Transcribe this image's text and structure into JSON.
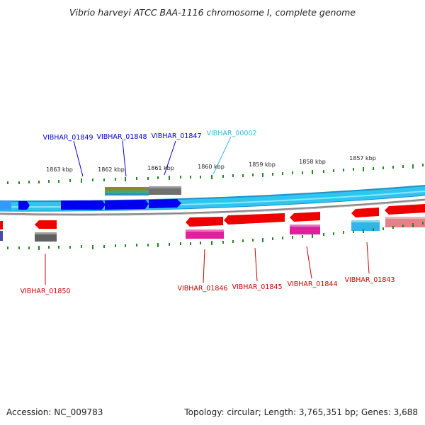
{
  "title": "Vibrio harveyi ATCC BAA-1116 chromosome I, complete genome",
  "footer": {
    "accession": "Accession: NC_009783",
    "summary": "Topology: circular; Length: 3,765,351 bp; Genes: 3,688"
  },
  "scale_labels": [
    "1863 kbp",
    "1862 kbp",
    "1861 kbp",
    "1860 kbp",
    "1859 kbp",
    "1858 kbp",
    "1857 kbp"
  ],
  "gene_labels_top": [
    {
      "text": "VIBHAR_01849",
      "color": "#0000cc"
    },
    {
      "text": "VIBHAR_01848",
      "color": "#0000cc"
    },
    {
      "text": "VIBHAR_01847",
      "color": "#0000cc"
    },
    {
      "text": "VIBHAR_00002",
      "color": "#33bbdd"
    }
  ],
  "gene_labels_bottom": [
    {
      "text": "VIBHAR_01850",
      "color": "#cc0000"
    },
    {
      "text": "VIBHAR_01846",
      "color": "#cc0000"
    },
    {
      "text": "VIBHAR_01845",
      "color": "#cc0000"
    },
    {
      "text": "VIBHAR_01844",
      "color": "#cc0000"
    },
    {
      "text": "VIBHAR_01843",
      "color": "#cc0000"
    }
  ],
  "colors": {
    "forward_cds": "#0000ee",
    "reverse_cds": "#ee0000",
    "backbone": "#2fc5ee",
    "backbone_edge": "#1e90c8",
    "grey_track": "#808080",
    "tick": "#228822"
  }
}
